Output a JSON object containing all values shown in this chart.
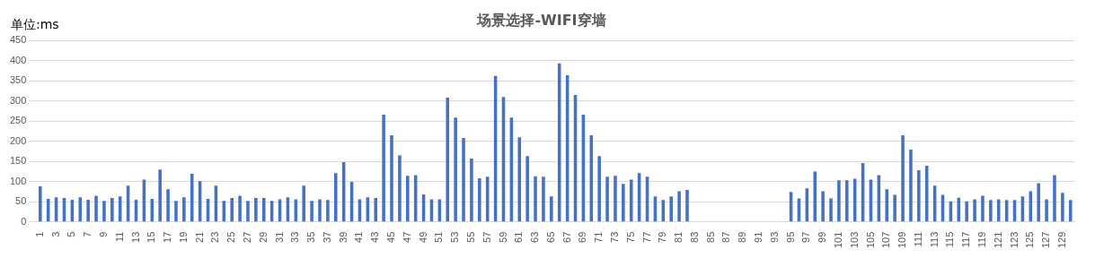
{
  "chart_data": {
    "type": "bar",
    "title": "场景选择-WIFI穿墙",
    "ylabel": "单位:ms",
    "categories": [
      "1",
      null,
      "3",
      null,
      "5",
      null,
      "7",
      null,
      "9",
      null,
      "11",
      null,
      "13",
      null,
      "15",
      null,
      "17",
      null,
      "19",
      null,
      "21",
      null,
      "23",
      null,
      "25",
      null,
      "27",
      null,
      "29",
      null,
      "31",
      null,
      "33",
      null,
      "35",
      null,
      "37",
      null,
      "39",
      null,
      "41",
      null,
      "43",
      null,
      "45",
      null,
      "47",
      null,
      "49",
      null,
      "51",
      null,
      "53",
      null,
      "55",
      null,
      "57",
      null,
      "59",
      null,
      "61",
      null,
      "63",
      null,
      "65",
      null,
      "67",
      null,
      "69",
      null,
      "71",
      null,
      "73",
      null,
      "75",
      null,
      "77",
      null,
      "79",
      null,
      "81",
      null,
      "83",
      null,
      "85",
      null,
      "87",
      null,
      "89",
      null,
      "91",
      null,
      "93",
      null,
      "95",
      null,
      "97",
      null,
      "99",
      null,
      "101",
      null,
      "103",
      null,
      "105",
      null,
      "107",
      null,
      "109",
      null,
      "111",
      null,
      "113",
      null,
      "115",
      null,
      "117",
      null,
      "119",
      null,
      "121",
      null,
      "123",
      null,
      "125",
      null,
      "127",
      null,
      "129",
      null
    ],
    "values": [
      88,
      57,
      61,
      59,
      55,
      61,
      55,
      65,
      52,
      59,
      63,
      90,
      55,
      105,
      57,
      130,
      81,
      52,
      61,
      119,
      101,
      57,
      90,
      52,
      59,
      65,
      52,
      59,
      59,
      52,
      56,
      61,
      56,
      90,
      52,
      56,
      54,
      121,
      148,
      99,
      56,
      61,
      59,
      266,
      215,
      165,
      114,
      116,
      68,
      56,
      56,
      308,
      259,
      208,
      157,
      108,
      112,
      362,
      310,
      259,
      210,
      163,
      113,
      112,
      63,
      393,
      364,
      315,
      266,
      215,
      163,
      112,
      114,
      94,
      105,
      121,
      112,
      63,
      54,
      63,
      76,
      79,
      null,
      null,
      null,
      null,
      null,
      null,
      null,
      null,
      null,
      null,
      null,
      null,
      74,
      58,
      83,
      125,
      76,
      58,
      103,
      103,
      107,
      146,
      105,
      116,
      81,
      67,
      215,
      179,
      128,
      139,
      90,
      67,
      51,
      60,
      51,
      56,
      65,
      54,
      56,
      54,
      54,
      63,
      76,
      96,
      56,
      116,
      72,
      54
    ],
    "color": "#4472c4",
    "ylim": [
      0,
      450
    ],
    "yticks": [
      0,
      50,
      100,
      150,
      200,
      250,
      300,
      350,
      400,
      450
    ],
    "grid": "y"
  }
}
